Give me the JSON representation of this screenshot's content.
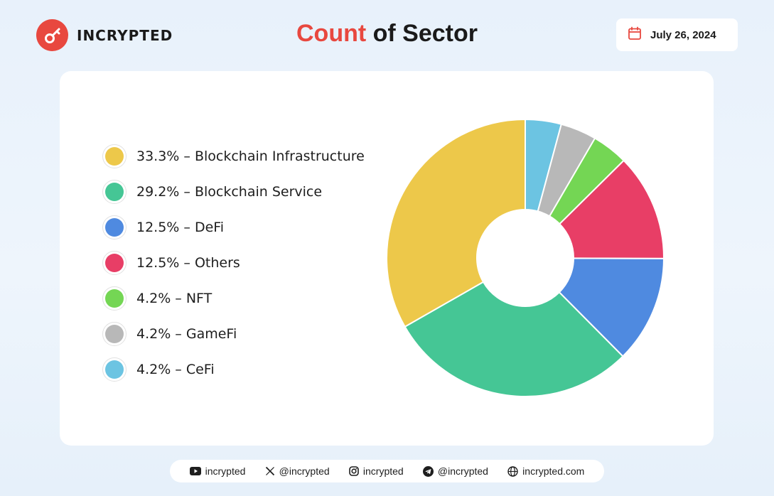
{
  "brand": {
    "name": "INCRYPTED",
    "icon": "key-icon",
    "color": "#e8483f"
  },
  "header": {
    "title_accent": "Count",
    "title_rest": " of Sector",
    "date": "July 26, 2024",
    "date_icon": "calendar-icon"
  },
  "chart_data": {
    "type": "pie",
    "title": "Count of Sector",
    "donut": true,
    "legend_position": "left",
    "slices": [
      {
        "label": "33.3% – Blockchain Infrastructure",
        "name": "Blockchain Infrastructure",
        "percent": 33.3,
        "color": "#edc84a"
      },
      {
        "label": "29.2% – Blockchain Service",
        "name": "Blockchain Service",
        "percent": 29.2,
        "color": "#45c695"
      },
      {
        "label": "12.5% – DeFi",
        "name": "DeFi",
        "percent": 12.5,
        "color": "#4f8ae0"
      },
      {
        "label": "12.5% – Others",
        "name": "Others",
        "percent": 12.5,
        "color": "#e83e66"
      },
      {
        "label": "4.2% – NFT",
        "name": "NFT",
        "percent": 4.2,
        "color": "#74d654"
      },
      {
        "label": "4.2% – GameFi",
        "name": "GameFi",
        "percent": 4.2,
        "color": "#b8b8b8"
      },
      {
        "label": "4.2% – CeFi",
        "name": "CeFi",
        "percent": 4.2,
        "color": "#6cc4e2"
      }
    ],
    "draw_order": [
      "CeFi",
      "GameFi",
      "NFT",
      "Others",
      "DeFi",
      "Blockchain Service",
      "Blockchain Infrastructure"
    ]
  },
  "footer": {
    "items": [
      {
        "icon": "youtube-icon",
        "text": "incrypted"
      },
      {
        "icon": "x-icon",
        "text": "@incrypted"
      },
      {
        "icon": "instagram-icon",
        "text": "incrypted"
      },
      {
        "icon": "telegram-icon",
        "text": "@incrypted"
      },
      {
        "icon": "globe-icon",
        "text": "incrypted.com"
      }
    ]
  }
}
